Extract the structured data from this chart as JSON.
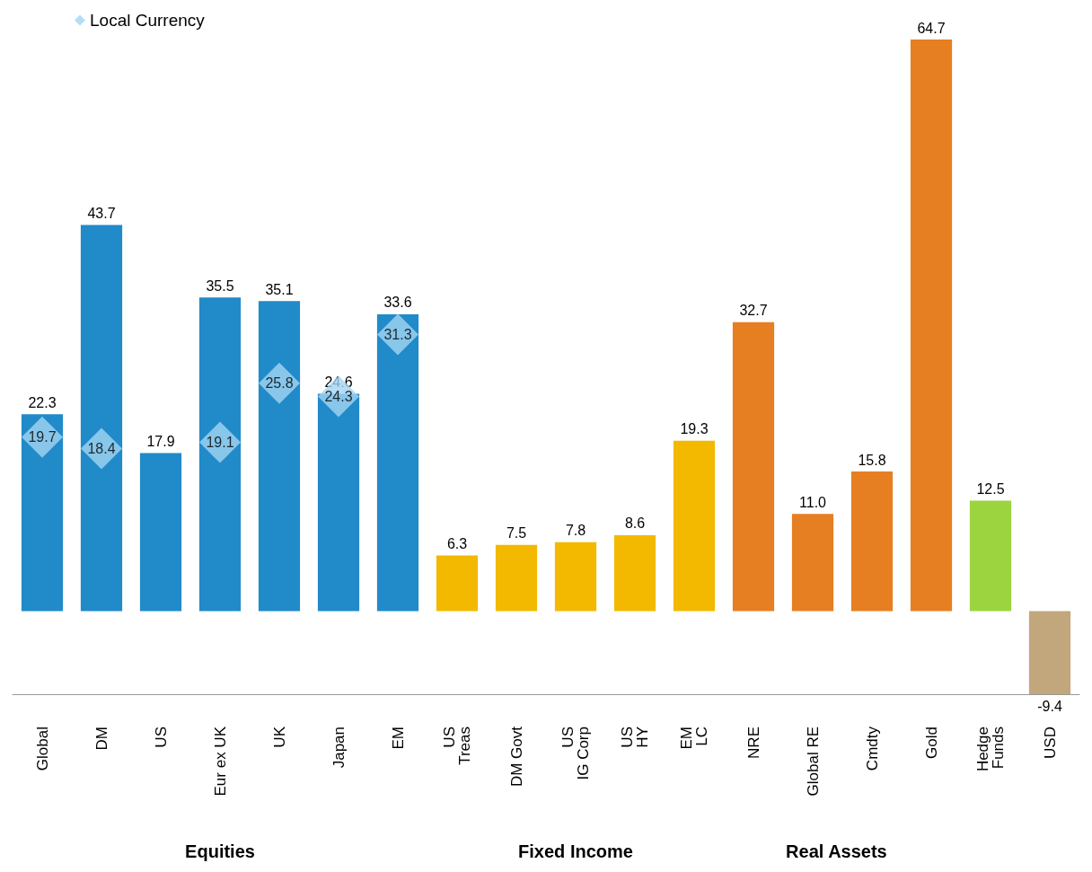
{
  "chart_data": {
    "type": "bar",
    "categories": [
      "Global",
      "DM",
      "US",
      "Eur ex UK",
      "UK",
      "Japan",
      "EM",
      "US\nTreas",
      "DM Govt",
      "US\nIG Corp",
      "US\nHY",
      "EM\nLC",
      "NRE",
      "Global RE",
      "Cmdty",
      "Gold",
      "Hedge\nFunds",
      "USD"
    ],
    "series": [
      {
        "value_labels": [
          "22.3",
          "43.7",
          "17.9",
          "35.5",
          "35.1",
          "24.6",
          "33.6",
          "6.3",
          "7.5",
          "7.8",
          "8.6",
          "19.3",
          "32.7",
          "11.0",
          "15.8",
          "64.7",
          "12.5",
          "-9.4"
        ],
        "values": [
          22.3,
          43.7,
          17.9,
          35.5,
          35.1,
          24.6,
          33.6,
          6.3,
          7.5,
          7.8,
          8.6,
          19.3,
          32.7,
          11.0,
          15.8,
          64.7,
          12.5,
          -9.4
        ],
        "colors": [
          "#218ac9",
          "#218ac9",
          "#218ac9",
          "#218ac9",
          "#218ac9",
          "#218ac9",
          "#218ac9",
          "#f2b900",
          "#f2b900",
          "#f2b900",
          "#f2b900",
          "#f2b900",
          "#e67f22",
          "#e67f22",
          "#e67f22",
          "#e67f22",
          "#9cd43f",
          "#c2a77d"
        ]
      },
      {
        "type": "scatter",
        "name": "Local Currency",
        "color": "#a3d4f3",
        "value_labels": [
          "19.7",
          "18.4",
          null,
          "19.1",
          "25.8",
          "24.3",
          "31.3",
          null,
          null,
          null,
          null,
          null,
          null,
          null,
          null,
          null,
          null,
          null
        ],
        "values": [
          19.7,
          18.4,
          null,
          19.1,
          25.8,
          24.3,
          31.3,
          null,
          null,
          null,
          null,
          null,
          null,
          null,
          null,
          null,
          null,
          null
        ]
      }
    ],
    "annotations": [
      "Equities",
      "Fixed Income",
      "Real Assets"
    ],
    "marker": "diamond",
    "legend": "top left"
  }
}
